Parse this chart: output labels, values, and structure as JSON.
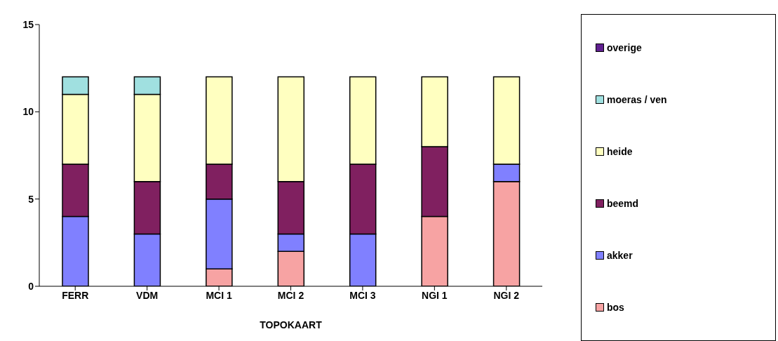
{
  "chart_data": {
    "type": "bar",
    "stacked": true,
    "xlabel": "TOPOKAART",
    "categories": [
      "FERR",
      "VDM",
      "MCI 1",
      "MCI 2",
      "MCI 3",
      "NGI 1",
      "NGI 2"
    ],
    "ylim": [
      0,
      15
    ],
    "yticks": [
      0,
      5,
      10,
      15
    ],
    "grid": false,
    "legend": "right",
    "series": [
      {
        "name": "bos",
        "color": "#f7a3a3",
        "values": [
          0,
          0,
          1,
          2,
          0,
          4,
          6
        ]
      },
      {
        "name": "akker",
        "color": "#8080ff",
        "values": [
          4,
          3,
          4,
          1,
          3,
          0,
          1
        ]
      },
      {
        "name": "beemd",
        "color": "#802060",
        "values": [
          3,
          3,
          2,
          3,
          4,
          4,
          0
        ]
      },
      {
        "name": "heide",
        "color": "#ffffc0",
        "values": [
          4,
          5,
          5,
          6,
          5,
          4,
          5
        ]
      },
      {
        "name": "moeras / ven",
        "color": "#a0e0e0",
        "values": [
          1,
          1,
          0,
          0,
          0,
          0,
          0
        ]
      },
      {
        "name": "overige",
        "color": "#602090",
        "values": [
          0,
          0,
          0,
          0,
          0,
          0,
          0
        ]
      }
    ]
  }
}
